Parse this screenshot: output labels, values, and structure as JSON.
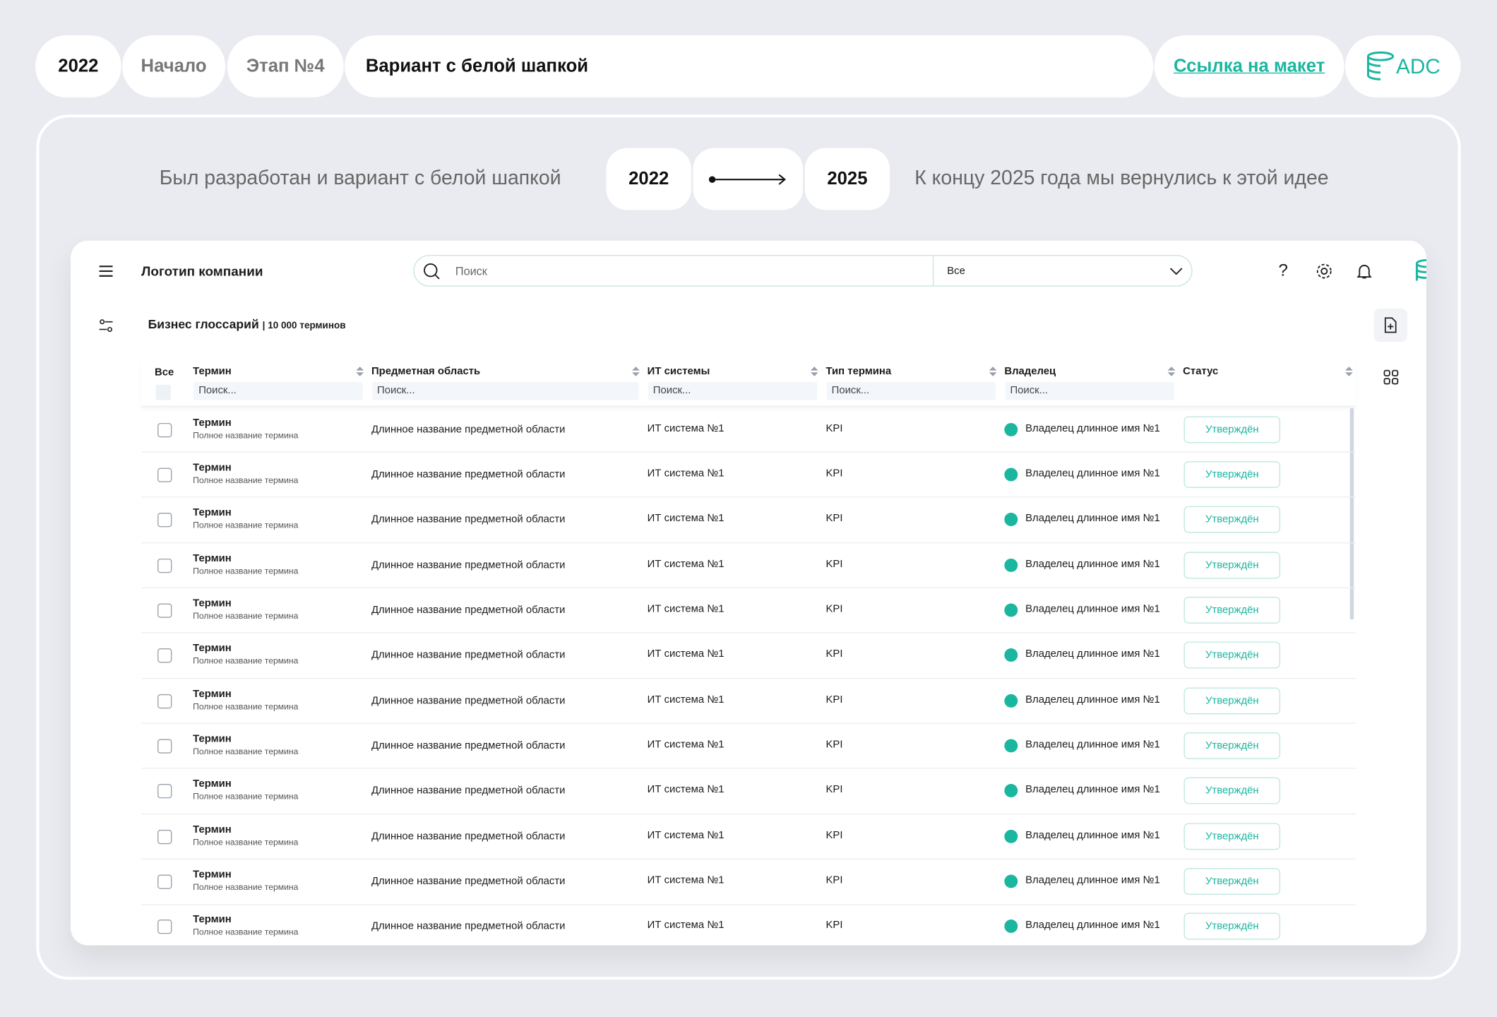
{
  "header": {
    "year": "2022",
    "stage_start": "Начало",
    "stage": "Этап №4",
    "title": "Вариант с белой шапкой",
    "link": "Ссылка  на макет",
    "logo": "ADC"
  },
  "comparison": {
    "left_text": "Был разработан и вариант с белой шапкой",
    "from_year": "2022",
    "to_year": "2025",
    "right_text": "К концу 2025 года мы вернулись к этой идее"
  },
  "app": {
    "company_logo": "Логотип компании",
    "search_placeholder": "Поиск",
    "search_scope": "Все",
    "help": "?",
    "page_title": "Бизнес глоссарий",
    "term_count": "| 10 000 терминов",
    "table": {
      "select_all": "Все",
      "columns": [
        {
          "title": "Термин",
          "filter": "Поиск..."
        },
        {
          "title": "Предметная область",
          "filter": "Поиск..."
        },
        {
          "title": "ИТ системы",
          "filter": "Поиск..."
        },
        {
          "title": "Тип термина",
          "filter": "Поиск..."
        },
        {
          "title": "Владелец",
          "filter": "Поиск..."
        },
        {
          "title": "Статус"
        }
      ],
      "rows": [
        {
          "term": "Термин",
          "full_name": "Полное название термина",
          "domain": "Длинное название предметной области",
          "system": "ИТ система №1",
          "type": "KPI",
          "owner": "Владелец длинное имя №1",
          "status": "Утверждён"
        },
        {
          "term": "Термин",
          "full_name": "Полное название термина",
          "domain": "Длинное название предметной области",
          "system": "ИТ система №1",
          "type": "KPI",
          "owner": "Владелец длинное имя №1",
          "status": "Утверждён"
        },
        {
          "term": "Термин",
          "full_name": "Полное название термина",
          "domain": "Длинное название предметной области",
          "system": "ИТ система №1",
          "type": "KPI",
          "owner": "Владелец длинное имя №1",
          "status": "Утверждён"
        },
        {
          "term": "Термин",
          "full_name": "Полное название термина",
          "domain": "Длинное название предметной области",
          "system": "ИТ система №1",
          "type": "KPI",
          "owner": "Владелец длинное имя №1",
          "status": "Утверждён"
        },
        {
          "term": "Термин",
          "full_name": "Полное название термина",
          "domain": "Длинное название предметной области",
          "system": "ИТ система №1",
          "type": "KPI",
          "owner": "Владелец длинное имя №1",
          "status": "Утверждён"
        },
        {
          "term": "Термин",
          "full_name": "Полное название термина",
          "domain": "Длинное название предметной области",
          "system": "ИТ система №1",
          "type": "KPI",
          "owner": "Владелец длинное имя №1",
          "status": "Утверждён"
        },
        {
          "term": "Термин",
          "full_name": "Полное название термина",
          "domain": "Длинное название предметной области",
          "system": "ИТ система №1",
          "type": "KPI",
          "owner": "Владелец длинное имя №1",
          "status": "Утверждён"
        },
        {
          "term": "Термин",
          "full_name": "Полное название термина",
          "domain": "Длинное название предметной области",
          "system": "ИТ система №1",
          "type": "KPI",
          "owner": "Владелец длинное имя №1",
          "status": "Утверждён"
        },
        {
          "term": "Термин",
          "full_name": "Полное название термина",
          "domain": "Длинное название предметной области",
          "system": "ИТ система №1",
          "type": "KPI",
          "owner": "Владелец длинное имя №1",
          "status": "Утверждён"
        },
        {
          "term": "Термин",
          "full_name": "Полное название термина",
          "domain": "Длинное название предметной области",
          "system": "ИТ система №1",
          "type": "KPI",
          "owner": "Владелец длинное имя №1",
          "status": "Утверждён"
        },
        {
          "term": "Термин",
          "full_name": "Полное название термина",
          "domain": "Длинное название предметной области",
          "system": "ИТ система №1",
          "type": "KPI",
          "owner": "Владелец длинное имя №1",
          "status": "Утверждён"
        },
        {
          "term": "Термин",
          "full_name": "Полное название термина",
          "domain": "Длинное название предметной области",
          "system": "ИТ система №1",
          "type": "KPI",
          "owner": "Владелец длинное имя №1",
          "status": "Утверждён"
        }
      ]
    }
  }
}
